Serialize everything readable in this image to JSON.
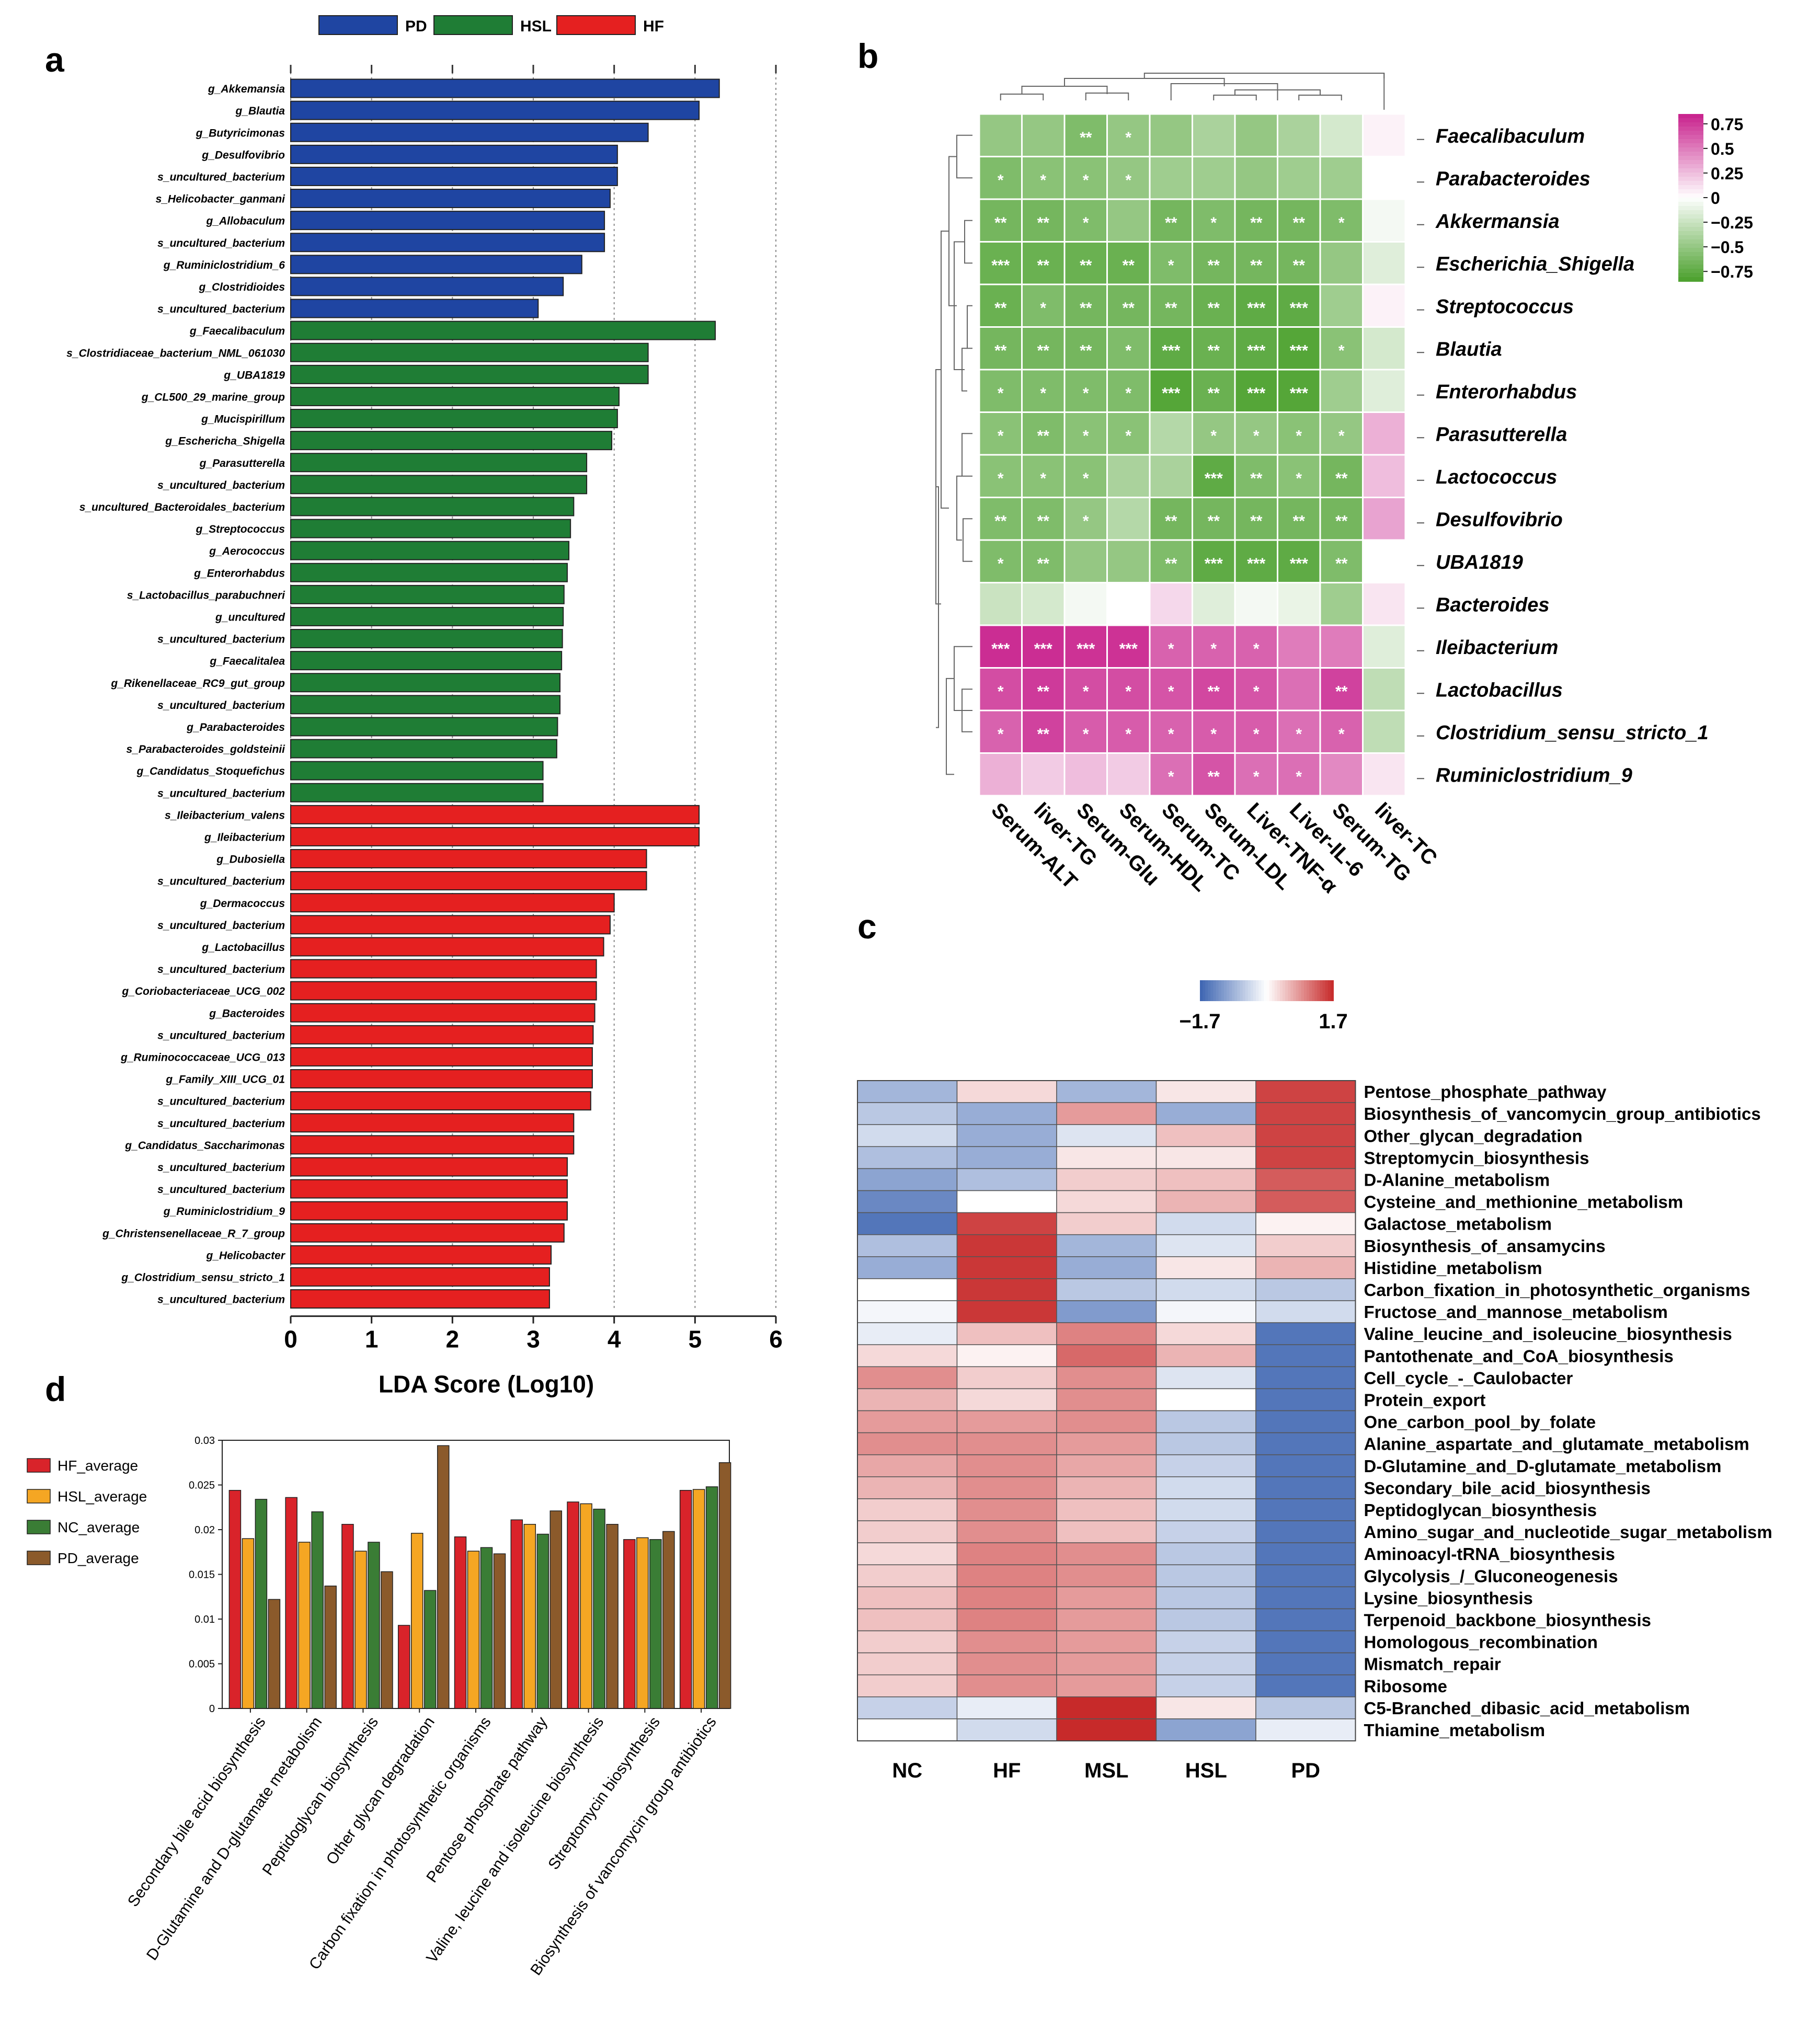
{
  "panel_labels": {
    "a": "a",
    "b": "b",
    "c": "c",
    "d": "d"
  },
  "chart_data": [
    {
      "type": "bar",
      "orientation": "horizontal",
      "panel": "a",
      "xlabel": "LDA Score (Log10)",
      "xlim": [
        0,
        6
      ],
      "xticks": [
        "0",
        "1",
        "2",
        "3",
        "4",
        "5",
        "6"
      ],
      "legend": [
        {
          "name": "PD",
          "color": "#1f45a2"
        },
        {
          "name": "HSL",
          "color": "#1f7d35"
        },
        {
          "name": "HF",
          "color": "#e52020"
        }
      ],
      "groups": [
        {
          "name": "PD",
          "color": "#1f45a2",
          "items": [
            {
              "label": "g_Akkemansia",
              "value": 5.3
            },
            {
              "label": "g_Blautia",
              "value": 5.05
            },
            {
              "label": "g_Butyricimonas",
              "value": 4.42
            },
            {
              "label": "g_Desulfovibrio",
              "value": 4.04
            },
            {
              "label": "s_uncultured_bacterium",
              "value": 4.04
            },
            {
              "label": "s_Helicobacter_ganmani",
              "value": 3.95
            },
            {
              "label": "g_Allobaculum",
              "value": 3.88
            },
            {
              "label": "s_uncultured_bacterium",
              "value": 3.88
            },
            {
              "label": "g_Ruminiclostridium_6",
              "value": 3.6
            },
            {
              "label": "g_Clostridioides",
              "value": 3.37
            },
            {
              "label": "s_uncultured_bacterium",
              "value": 3.06
            }
          ]
        },
        {
          "name": "HSL",
          "color": "#1f7d35",
          "items": [
            {
              "label": "g_Faecalibaculum",
              "value": 5.25
            },
            {
              "label": "s_Clostridiaceae_bacterium_NML_061030",
              "value": 4.42
            },
            {
              "label": "g_UBA1819",
              "value": 4.42
            },
            {
              "label": "g_CL500_29_marine_group",
              "value": 4.06
            },
            {
              "label": "g_Mucispirillum",
              "value": 4.04
            },
            {
              "label": "g_Eschericha_Shigella",
              "value": 3.97
            },
            {
              "label": "g_Parasutterella",
              "value": 3.66
            },
            {
              "label": "s_uncultured_bacterium",
              "value": 3.66
            },
            {
              "label": "s_uncultured_Bacteroidales_bacterium",
              "value": 3.5
            },
            {
              "label": "g_Streptococcus",
              "value": 3.46
            },
            {
              "label": "g_Aerococcus",
              "value": 3.44
            },
            {
              "label": "g_Enterorhabdus",
              "value": 3.42
            },
            {
              "label": "s_Lactobacillus_parabuchneri",
              "value": 3.38
            },
            {
              "label": "g_uncultured",
              "value": 3.37
            },
            {
              "label": "s_uncultured_bacterium",
              "value": 3.36
            },
            {
              "label": "g_Faecalitalea",
              "value": 3.35
            },
            {
              "label": "g_Rikenellaceae_RC9_gut_group",
              "value": 3.33
            },
            {
              "label": "s_uncultured_bacterium",
              "value": 3.33
            },
            {
              "label": "g_Parabacteroides",
              "value": 3.3
            },
            {
              "label": "s_Parabacteroides_goldsteinii",
              "value": 3.29
            },
            {
              "label": "g_Candidatus_Stoquefichus",
              "value": 3.12
            },
            {
              "label": "s_uncultured_bacterium",
              "value": 3.12
            }
          ]
        },
        {
          "name": "HF",
          "color": "#e52020",
          "items": [
            {
              "label": "s_Ileibacterium_valens",
              "value": 5.05
            },
            {
              "label": "g_Ileibacterium",
              "value": 5.05
            },
            {
              "label": "g_Dubosiella",
              "value": 4.4
            },
            {
              "label": "s_uncultured_bacterium",
              "value": 4.4
            },
            {
              "label": "g_Dermacoccus",
              "value": 4.0
            },
            {
              "label": "s_uncultured_bacterium",
              "value": 3.95
            },
            {
              "label": "g_Lactobacillus",
              "value": 3.87
            },
            {
              "label": "s_uncultured_bacterium",
              "value": 3.78
            },
            {
              "label": "g_Coriobacteriaceae_UCG_002",
              "value": 3.78
            },
            {
              "label": "g_Bacteroides",
              "value": 3.76
            },
            {
              "label": "s_uncultured_bacterium",
              "value": 3.74
            },
            {
              "label": "g_Ruminococcaceae_UCG_013",
              "value": 3.73
            },
            {
              "label": "g_Family_XIII_UCG_01",
              "value": 3.73
            },
            {
              "label": "s_uncultured_bacterium",
              "value": 3.71
            },
            {
              "label": "s_uncultured_bacterium",
              "value": 3.5
            },
            {
              "label": "g_Candidatus_Saccharimonas",
              "value": 3.5
            },
            {
              "label": "s_uncultured_bacterium",
              "value": 3.42
            },
            {
              "label": "s_uncultured_bacterium",
              "value": 3.42
            },
            {
              "label": "g_Ruminiclostridium_9",
              "value": 3.42
            },
            {
              "label": "g_Christensenellaceae_R_7_group",
              "value": 3.38
            },
            {
              "label": "g_Helicobacter",
              "value": 3.22
            },
            {
              "label": "g_Clostridium_sensu_stricto_1",
              "value": 3.2
            },
            {
              "label": "s_uncultured_bacterium",
              "value": 3.2
            }
          ]
        }
      ]
    },
    {
      "type": "heatmap",
      "panel": "b",
      "rows": [
        "Faecalibaculum",
        "Parabacteroides",
        "Akkermansia",
        "Escherichia_Shigella",
        "Streptococcus",
        "Blautia",
        "Enterorhabdus",
        "Parasutterella",
        "Lactococcus",
        "Desulfovibrio",
        "UBA1819",
        "Bacteroides",
        "Ileibacterium",
        "Lactobacillus",
        "Clostridium_sensu_stricto_1",
        "Ruminiclostridium_9"
      ],
      "cols": [
        "Serum-ALT",
        "liver-TG",
        "Serum-Glu",
        "Serum-HDL",
        "Serum-TC",
        "Serum-LDL",
        "Liver-TNF-α",
        "Liver-IL-6",
        "Serum-TG",
        "liver-TC"
      ],
      "values": [
        [
          -0.5,
          -0.5,
          -0.6,
          -0.5,
          -0.5,
          -0.4,
          -0.5,
          -0.4,
          -0.2,
          0.05
        ],
        [
          -0.6,
          -0.55,
          -0.55,
          -0.5,
          -0.45,
          -0.45,
          -0.5,
          -0.45,
          -0.45,
          0.0
        ],
        [
          -0.65,
          -0.65,
          -0.6,
          -0.5,
          -0.65,
          -0.6,
          -0.65,
          -0.65,
          -0.6,
          -0.05
        ],
        [
          -0.7,
          -0.7,
          -0.7,
          -0.7,
          -0.6,
          -0.65,
          -0.65,
          -0.65,
          -0.5,
          -0.15
        ],
        [
          -0.7,
          -0.6,
          -0.65,
          -0.65,
          -0.65,
          -0.7,
          -0.75,
          -0.75,
          -0.45,
          0.05
        ],
        [
          -0.65,
          -0.65,
          -0.65,
          -0.6,
          -0.75,
          -0.7,
          -0.75,
          -0.8,
          -0.55,
          -0.2
        ],
        [
          -0.6,
          -0.6,
          -0.6,
          -0.6,
          -0.8,
          -0.7,
          -0.8,
          -0.8,
          -0.45,
          -0.15
        ],
        [
          -0.55,
          -0.6,
          -0.55,
          -0.55,
          -0.35,
          -0.5,
          -0.5,
          -0.55,
          -0.5,
          0.3
        ],
        [
          -0.55,
          -0.55,
          -0.55,
          -0.4,
          -0.4,
          -0.75,
          -0.6,
          -0.55,
          -0.65,
          0.25
        ],
        [
          -0.6,
          -0.6,
          -0.5,
          -0.35,
          -0.65,
          -0.65,
          -0.65,
          -0.65,
          -0.65,
          0.35
        ],
        [
          -0.6,
          -0.6,
          -0.5,
          -0.5,
          -0.6,
          -0.75,
          -0.75,
          -0.75,
          -0.6,
          0.0
        ],
        [
          -0.25,
          -0.2,
          -0.05,
          0.0,
          0.15,
          -0.15,
          -0.05,
          -0.1,
          -0.45,
          0.1
        ],
        [
          0.8,
          0.8,
          0.78,
          0.78,
          0.6,
          0.6,
          0.6,
          0.5,
          0.5,
          -0.15
        ],
        [
          0.68,
          0.75,
          0.68,
          0.68,
          0.65,
          0.7,
          0.65,
          0.55,
          0.72,
          -0.3
        ],
        [
          0.6,
          0.72,
          0.62,
          0.62,
          0.6,
          0.62,
          0.62,
          0.55,
          0.6,
          -0.3
        ],
        [
          0.3,
          0.2,
          0.25,
          0.2,
          0.55,
          0.65,
          0.55,
          0.55,
          0.45,
          0.1
        ]
      ],
      "significance": [
        [
          "",
          "",
          "**",
          "*",
          "",
          "",
          "",
          "",
          "",
          ""
        ],
        [
          "*",
          "*",
          "*",
          "*",
          "",
          "",
          "",
          "",
          "",
          ""
        ],
        [
          "**",
          "**",
          "*",
          "",
          "**",
          "*",
          "**",
          "**",
          "*",
          ""
        ],
        [
          "***",
          "**",
          "**",
          "**",
          "*",
          "**",
          "**",
          "**",
          "",
          ""
        ],
        [
          "**",
          "*",
          "**",
          "**",
          "**",
          "**",
          "***",
          "***",
          "",
          ""
        ],
        [
          "**",
          "**",
          "**",
          "*",
          "***",
          "**",
          "***",
          "***",
          "*",
          ""
        ],
        [
          "*",
          "*",
          "*",
          "*",
          "***",
          "**",
          "***",
          "***",
          "",
          ""
        ],
        [
          "*",
          "**",
          "*",
          "*",
          "",
          "*",
          "*",
          "*",
          "*",
          ""
        ],
        [
          "*",
          "*",
          "*",
          "",
          "",
          "***",
          "**",
          "*",
          "**",
          ""
        ],
        [
          "**",
          "**",
          "*",
          "",
          "**",
          "**",
          "**",
          "**",
          "**",
          ""
        ],
        [
          "*",
          "**",
          "",
          "",
          "**",
          "***",
          "***",
          "***",
          "**",
          ""
        ],
        [
          "",
          "",
          "",
          "",
          "",
          "",
          "",
          "",
          "",
          ""
        ],
        [
          "***",
          "***",
          "***",
          "***",
          "*",
          "*",
          "*",
          "",
          "",
          ""
        ],
        [
          "*",
          "**",
          "*",
          "*",
          "*",
          "**",
          "*",
          "",
          "**",
          ""
        ],
        [
          "*",
          "**",
          "*",
          "*",
          "*",
          "*",
          "*",
          "*",
          "*",
          ""
        ],
        [
          "",
          "",
          "",
          "",
          "*",
          "**",
          "*",
          "*",
          "",
          ""
        ]
      ],
      "legend_ticks": [
        "0.75",
        "0.5",
        "0.25",
        "0",
        "−0.25",
        "−0.5",
        "−0.75"
      ],
      "range": [
        -0.85,
        0.85
      ]
    },
    {
      "type": "heatmap",
      "panel": "c",
      "cols": [
        "NC",
        "HF",
        "MSL",
        "HSL",
        "PD"
      ],
      "rows": [
        "Pentose_phosphate_pathway",
        "Biosynthesis_of_vancomycin_group_antibiotics",
        "Other_glycan_degradation",
        "Streptomycin_biosynthesis",
        "D-Alanine_metabolism",
        "Cysteine_and_methionine_metabolism",
        "Galactose_metabolism",
        "Biosynthesis_of_ansamycins",
        "Histidine_metabolism",
        "Carbon_fixation_in_photosynthetic_organisms",
        "Fructose_and_mannose_metabolism",
        "Valine_leucine_and_isoleucine_biosynthesis",
        "Pantothenate_and_CoA_biosynthesis",
        "Cell_cycle_-_Caulobacter",
        "Protein_export",
        "One_carbon_pool_by_folate",
        "Alanine_aspartate_and_glutamate_metabolism",
        "D-Glutamine_and_D-glutamate_metabolism",
        "Secondary_bile_acid_biosynthesis",
        "Peptidoglycan_biosynthesis",
        "Amino_sugar_and_nucleotide_sugar_metabolism",
        "Aminoacyl-tRNA_biosynthesis",
        "Glycolysis_/_Gluconeogenesis",
        "Lysine_biosynthesis",
        "Terpenoid_backbone_biosynthesis",
        "Homologous_recombination",
        "Mismatch_repair",
        "Ribosome",
        "C5-Branched_dibasic_acid_metabolism",
        "Thiamine_metabolism"
      ],
      "values": [
        [
          -0.8,
          0.3,
          -0.8,
          0.2,
          1.5
        ],
        [
          -0.6,
          -0.9,
          0.8,
          -0.9,
          1.5
        ],
        [
          -0.4,
          -0.9,
          -0.3,
          0.5,
          1.5
        ],
        [
          -0.7,
          -0.9,
          0.2,
          0.2,
          1.5
        ],
        [
          -1.0,
          -0.7,
          0.4,
          0.5,
          1.3
        ],
        [
          -1.3,
          0.0,
          0.3,
          0.6,
          1.3
        ],
        [
          -1.5,
          1.5,
          0.4,
          -0.4,
          0.1
        ],
        [
          -0.7,
          1.6,
          -0.8,
          -0.3,
          0.4
        ],
        [
          -0.9,
          1.6,
          -0.9,
          0.2,
          0.6
        ],
        [
          0.0,
          1.6,
          -0.6,
          -0.4,
          -0.6
        ],
        [
          -0.1,
          1.6,
          -1.1,
          -0.1,
          -0.4
        ],
        [
          -0.2,
          0.5,
          1.0,
          0.3,
          -1.5
        ],
        [
          0.3,
          0.1,
          1.2,
          0.6,
          -1.5
        ],
        [
          0.9,
          0.4,
          0.9,
          -0.3,
          -1.5
        ],
        [
          0.6,
          0.3,
          0.9,
          0.0,
          -1.5
        ],
        [
          0.8,
          0.8,
          0.9,
          -0.6,
          -1.5
        ],
        [
          0.9,
          0.9,
          0.8,
          -0.6,
          -1.5
        ],
        [
          0.7,
          0.9,
          0.7,
          -0.5,
          -1.5
        ],
        [
          0.6,
          0.9,
          0.6,
          -0.4,
          -1.5
        ],
        [
          0.4,
          0.9,
          0.5,
          -0.4,
          -1.5
        ],
        [
          0.4,
          0.9,
          0.5,
          -0.5,
          -1.5
        ],
        [
          0.3,
          1.0,
          0.9,
          -0.6,
          -1.5
        ],
        [
          0.4,
          1.0,
          0.9,
          -0.6,
          -1.5
        ],
        [
          0.5,
          1.0,
          0.8,
          -0.6,
          -1.5
        ],
        [
          0.5,
          1.0,
          0.8,
          -0.6,
          -1.5
        ],
        [
          0.4,
          0.9,
          0.8,
          -0.5,
          -1.5
        ],
        [
          0.4,
          0.9,
          0.8,
          -0.5,
          -1.5
        ],
        [
          0.4,
          0.9,
          0.8,
          -0.5,
          -1.5
        ],
        [
          -0.5,
          -0.2,
          1.7,
          0.2,
          -0.6
        ],
        [
          0.0,
          -0.4,
          1.7,
          -1.0,
          -0.2
        ]
      ],
      "legend_ticks": [
        "−1.7",
        "1.7"
      ],
      "range": [
        -1.7,
        1.7
      ]
    },
    {
      "type": "bar",
      "panel": "d",
      "categories": [
        "Secondary bile acid biosynthesis",
        "D-Glutamine and D-glutamate metabolism",
        "Peptidoglycan biosynthesis",
        "Other glycan degradation",
        "Carbon fixation in photosynthetic organisms",
        "Pentose phosphate pathway",
        "Valine, leucine and isoleucine biosynthesis",
        "Streptomycin biosynthesis",
        "Biosynthesis of vancomycin group antibiotics"
      ],
      "series": [
        {
          "name": "HF_average",
          "color": "#d9232a",
          "values": [
            0.0244,
            0.0236,
            0.0206,
            0.0093,
            0.0192,
            0.0211,
            0.0231,
            0.0189,
            0.0244
          ]
        },
        {
          "name": "HSL_average",
          "color": "#f5a623",
          "values": [
            0.019,
            0.0186,
            0.0176,
            0.0196,
            0.0176,
            0.0206,
            0.0229,
            0.0191,
            0.0245
          ]
        },
        {
          "name": "NC_average",
          "color": "#3a7d35",
          "values": [
            0.0234,
            0.022,
            0.0186,
            0.0132,
            0.018,
            0.0195,
            0.0223,
            0.0189,
            0.0248
          ]
        },
        {
          "name": "PD_average",
          "color": "#8b5a2b",
          "values": [
            0.0122,
            0.0137,
            0.0153,
            0.0294,
            0.0173,
            0.0221,
            0.0206,
            0.0198,
            0.0275
          ]
        }
      ],
      "ylim": [
        0,
        0.03
      ],
      "yticks": [
        "0",
        "0.005",
        "0.01",
        "0.015",
        "0.02",
        "0.025",
        "0.03"
      ]
    }
  ]
}
